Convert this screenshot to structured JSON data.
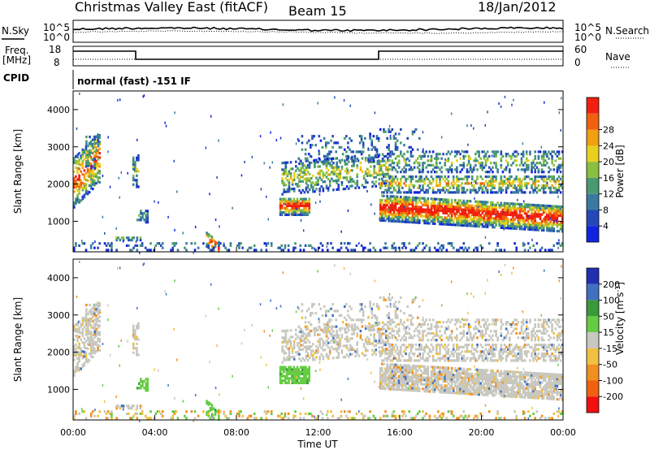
{
  "header": {
    "station": "Christmas Valley East (fitACF)",
    "beam": "Beam 15",
    "date": "18/Jan/2012"
  },
  "noise_panel": {
    "left_label": "N.Sky",
    "right_label": "N.Search",
    "ticks": [
      "10^5",
      "10^0"
    ]
  },
  "freq_panel": {
    "left_label_line1": "Freq.",
    "left_label_line2": "[MHz]",
    "left_ticks": [
      "18",
      "8"
    ],
    "right_label": "Nave",
    "right_ticks": [
      "60",
      "0"
    ]
  },
  "cpid": {
    "label": "CPID",
    "text": "normal (fast) -151 IF"
  },
  "chart_data": [
    {
      "type": "heatmap",
      "name_panel": "power",
      "ylabel": "Slant Range [km]",
      "xlabel": "",
      "y_ticks": [
        1000,
        2000,
        3000,
        4000
      ],
      "y_range": [
        180,
        4500
      ],
      "x_range": [
        0,
        24
      ],
      "colorbar": {
        "label": "Power [dB]",
        "ticks": [
          "4",
          "8",
          "12",
          "16",
          "20",
          "24",
          "28"
        ],
        "colors": [
          "#1024e0",
          "#2448b8",
          "#3a7aa0",
          "#4a9a70",
          "#88c040",
          "#e8d020",
          "#f0a010",
          "#f06010",
          "#f02010"
        ]
      }
    },
    {
      "type": "heatmap",
      "name_panel": "velocity",
      "ylabel": "Slant Range [km]",
      "xlabel": "Time UT",
      "x_tick_labels": [
        "00:00",
        "04:00",
        "08:00",
        "12:00",
        "16:00",
        "20:00",
        "00:00"
      ],
      "y_ticks": [
        1000,
        2000,
        3000,
        4000
      ],
      "y_range": [
        180,
        4500
      ],
      "x_range": [
        0,
        24
      ],
      "colorbar": {
        "label": "Velocity [m s^-1]",
        "ticks": [
          "200",
          "100",
          "50",
          "15",
          "-15",
          "-50",
          "-100",
          "-200"
        ],
        "colors": [
          "#2030b0",
          "#4070c0",
          "#3a9a3a",
          "#66cc44",
          "#c8c8c0",
          "#f0c040",
          "#f09020",
          "#f06010",
          "#f01010"
        ]
      }
    }
  ]
}
